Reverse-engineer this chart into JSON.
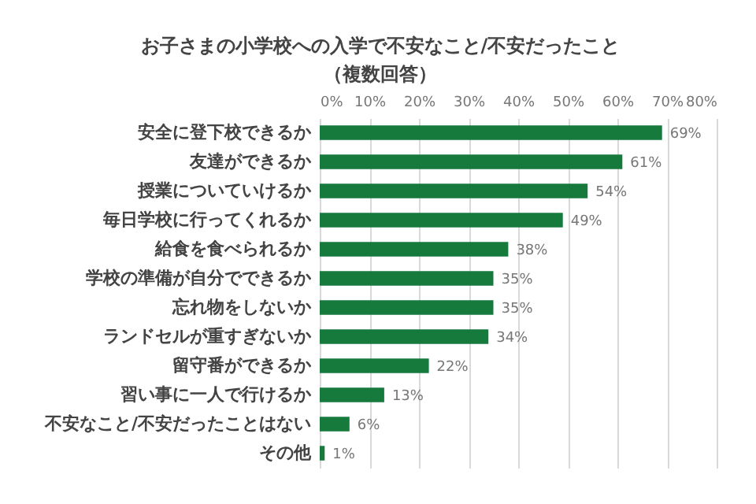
{
  "chart_data": {
    "type": "bar",
    "orientation": "horizontal",
    "title": "お子さまの小学校への入学で不安なこと/不安だったこと",
    "subtitle": "（複数回答）",
    "categories": [
      "安全に登下校できるか",
      "友達ができるか",
      "授業についていけるか",
      "毎日学校に行ってくれるか",
      "給食を食べられるか",
      "学校の準備が自分でできるか",
      "忘れ物をしないか",
      "ランドセルが重すぎないか",
      "留守番ができるか",
      "習い事に一人で行けるか",
      "不安なこと/不安だったことはない",
      "その他"
    ],
    "values": [
      69,
      61,
      54,
      49,
      38,
      35,
      35,
      34,
      22,
      13,
      6,
      1
    ],
    "value_labels": [
      "69%",
      "61%",
      "54%",
      "49%",
      "38%",
      "35%",
      "35%",
      "34%",
      "22%",
      "13%",
      "6%",
      "1%"
    ],
    "color": "#157a3c",
    "xlim": [
      0,
      80
    ],
    "xticks": [
      {
        "value": 0,
        "label": "0%"
      },
      {
        "value": 10,
        "label": "10%"
      },
      {
        "value": 20,
        "label": "20%"
      },
      {
        "value": 30,
        "label": "30%"
      },
      {
        "value": 40,
        "label": "40%"
      },
      {
        "value": 50,
        "label": "50%"
      },
      {
        "value": 60,
        "label": "60%"
      },
      {
        "value": 70,
        "label": "70%"
      },
      {
        "value": 80,
        "label": "80%"
      }
    ],
    "grid": "x"
  }
}
